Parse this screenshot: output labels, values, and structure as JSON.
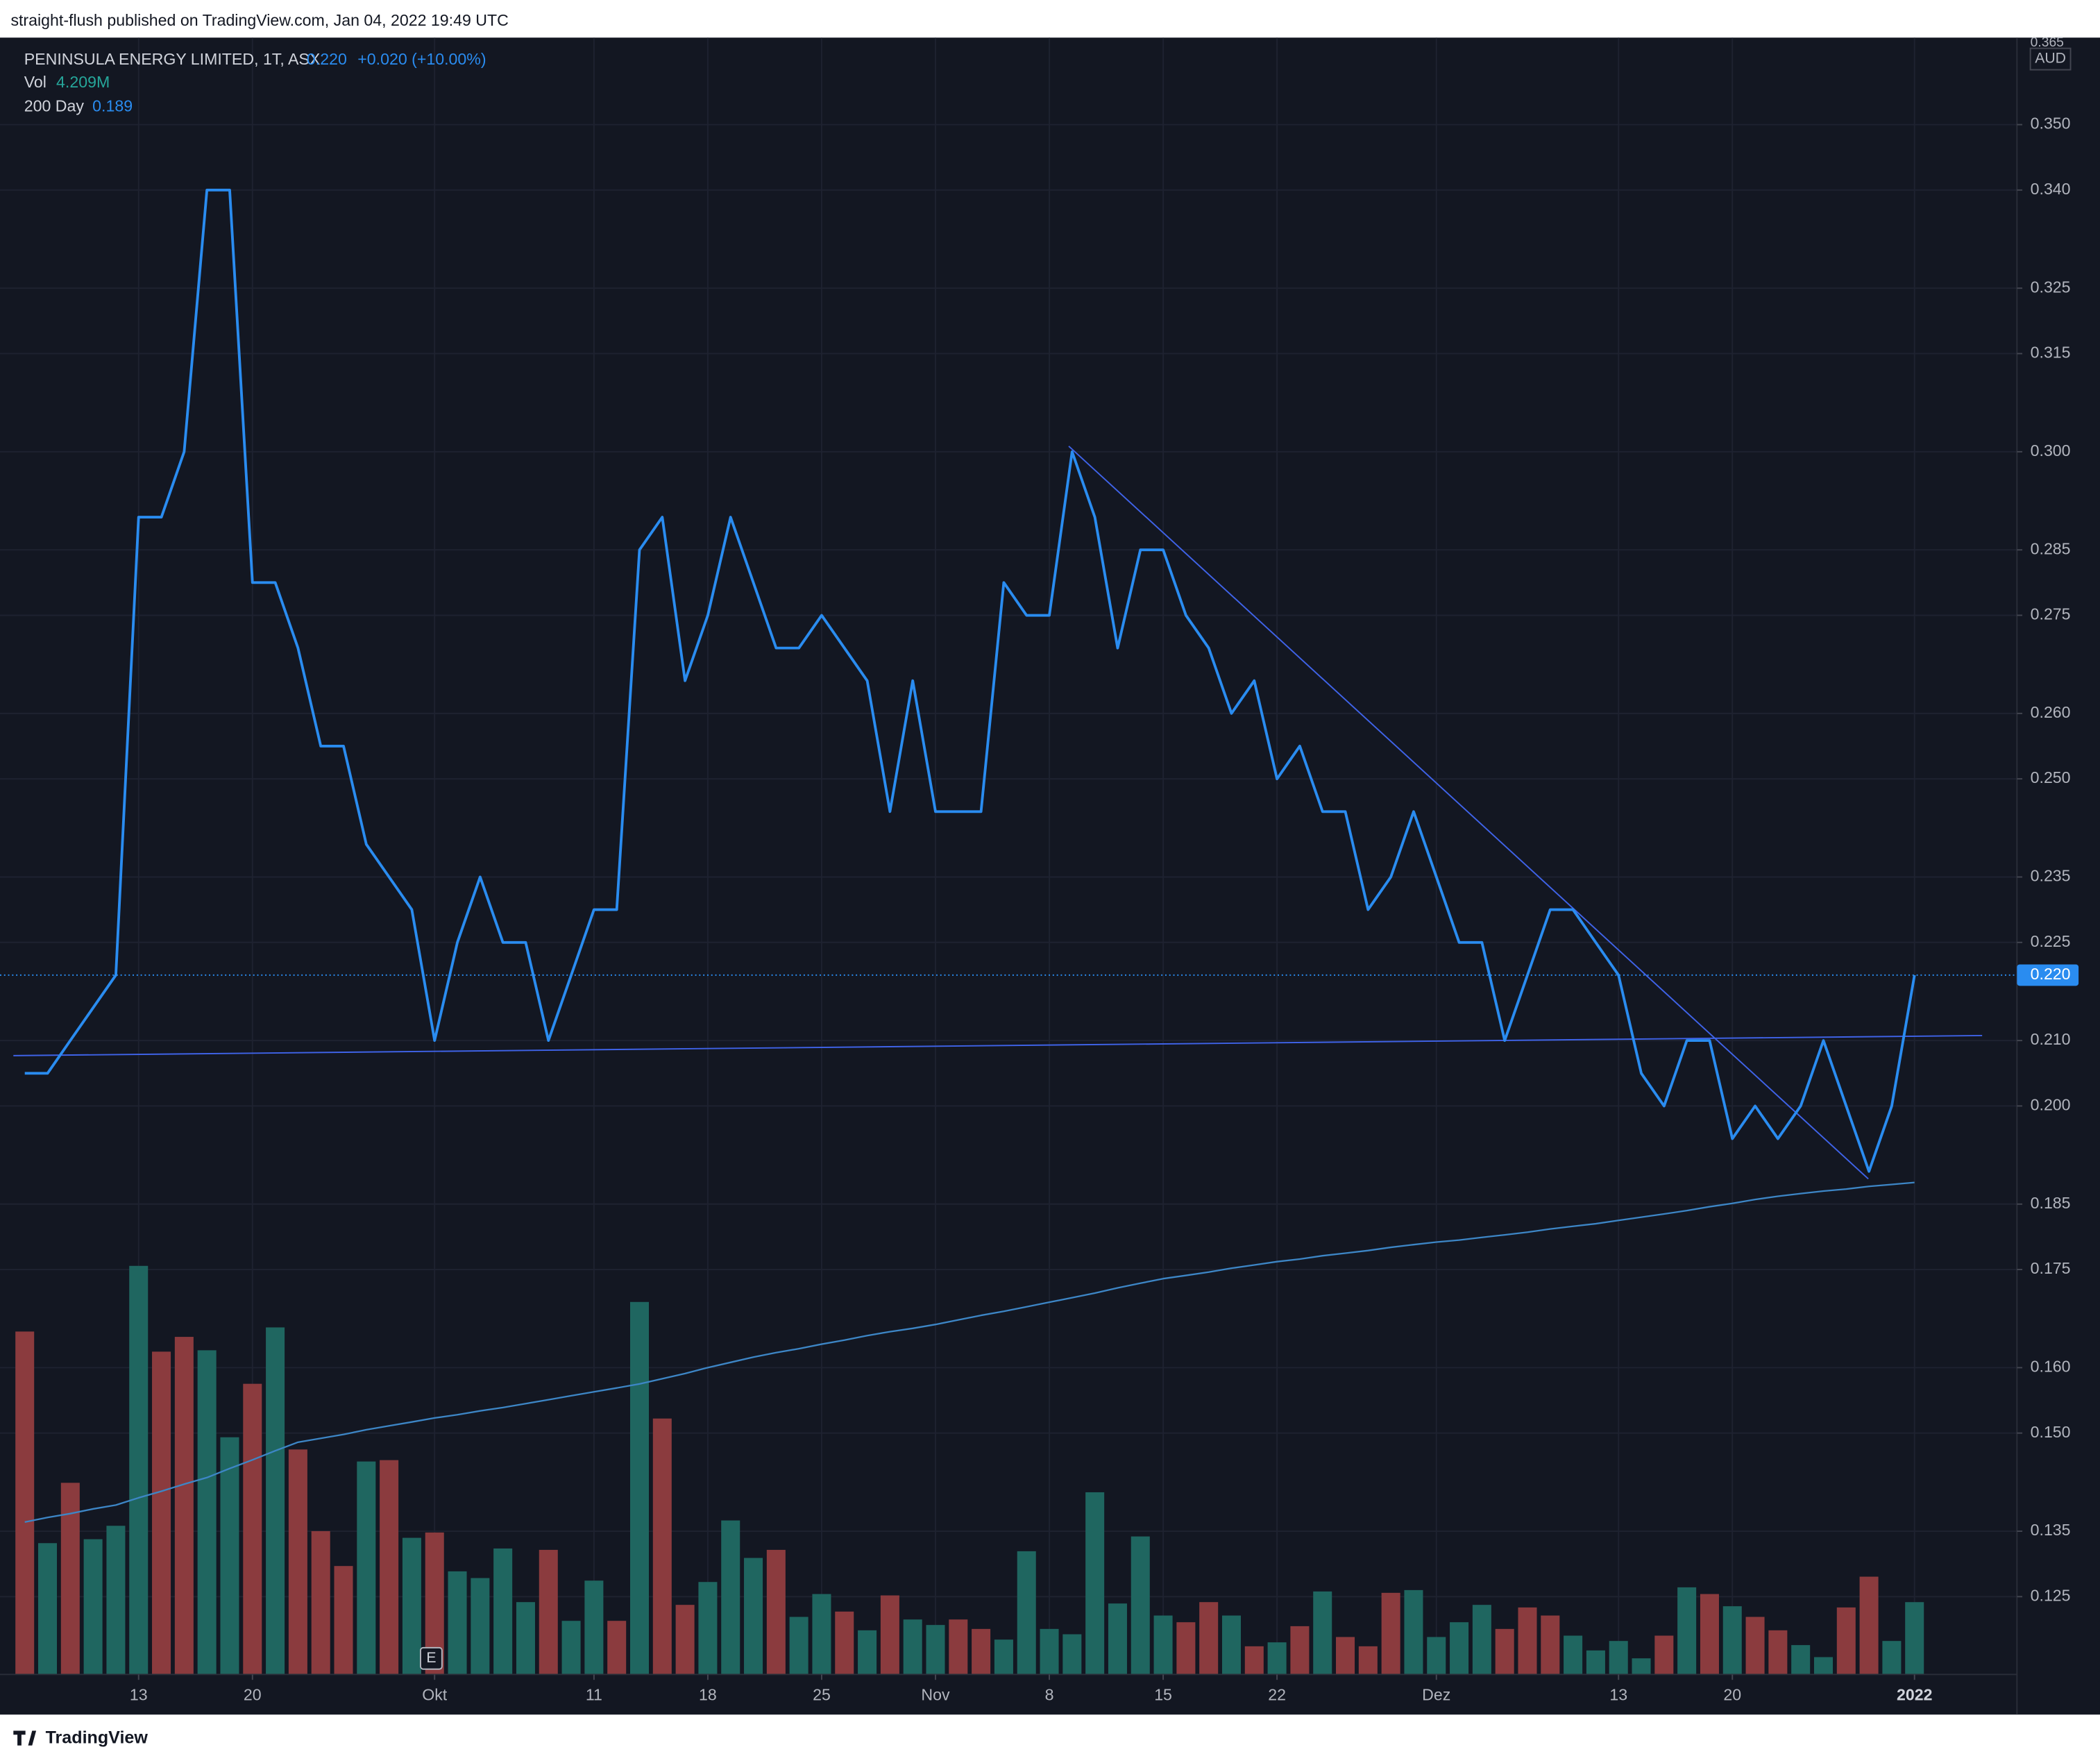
{
  "chart_data": {
    "type": "line",
    "publisher": "straight-flush published on TradingView.com, Jan 04, 2022 19:49 UTC",
    "currency": "AUD",
    "event_marker": "E",
    "brand": "TradingView",
    "grid": true,
    "categories": [
      null,
      null,
      null,
      null,
      null,
      "13",
      null,
      null,
      null,
      null,
      "20",
      null,
      null,
      null,
      null,
      null,
      null,
      null,
      "Okt",
      null,
      null,
      null,
      null,
      null,
      null,
      "11",
      null,
      null,
      null,
      null,
      "18",
      null,
      null,
      null,
      null,
      "25",
      null,
      null,
      null,
      null,
      "Nov",
      null,
      null,
      null,
      null,
      "8",
      null,
      null,
      null,
      null,
      "15",
      null,
      null,
      null,
      null,
      "22",
      null,
      null,
      null,
      null,
      null,
      null,
      "Dez",
      null,
      null,
      null,
      null,
      null,
      null,
      null,
      "13",
      null,
      null,
      null,
      null,
      "20",
      null,
      null,
      null,
      null,
      null,
      null,
      null,
      "2022"
    ],
    "ylim": [
      0.1131,
      0.3633
    ],
    "yticks": [
      0.365,
      {
        "value": 0.35,
        "label": "0.350"
      },
      {
        "value": 0.34,
        "label": "0.340"
      },
      0.325,
      0.315,
      {
        "value": 0.3,
        "label": "0.300"
      },
      0.285,
      0.275,
      {
        "value": 0.26,
        "label": "0.260"
      },
      {
        "value": 0.25,
        "label": "0.250"
      },
      0.235,
      0.225,
      {
        "value": 0.21,
        "label": "0.210"
      },
      {
        "value": 0.2,
        "label": "0.200"
      },
      0.185,
      0.175,
      {
        "value": 0.16,
        "label": "0.160"
      },
      {
        "value": 0.15,
        "label": "0.150"
      },
      0.135,
      0.125
    ],
    "series": [
      {
        "name": "PENINSULA ENERGY LIMITED, 1T, ASX",
        "color": "#2a8cf0",
        "last_label": "0.220",
        "change_label": "+0.020 (+10.00%)",
        "values": [
          0.205,
          0.205,
          0.21,
          0.215,
          0.22,
          0.29,
          0.29,
          0.3,
          0.34,
          0.34,
          0.28,
          0.28,
          0.27,
          0.255,
          0.255,
          0.24,
          0.235,
          0.23,
          0.21,
          0.225,
          0.235,
          0.225,
          0.225,
          0.21,
          0.22,
          0.23,
          0.23,
          0.285,
          0.29,
          0.265,
          0.275,
          0.29,
          0.28,
          0.27,
          0.27,
          0.275,
          0.27,
          0.265,
          0.245,
          0.265,
          0.245,
          0.245,
          0.245,
          0.28,
          0.275,
          0.275,
          0.3,
          0.29,
          0.27,
          0.285,
          0.285,
          0.275,
          0.27,
          0.26,
          0.265,
          0.25,
          0.255,
          0.245,
          0.245,
          0.23,
          0.235,
          0.245,
          0.235,
          0.225,
          0.225,
          0.21,
          0.22,
          0.23,
          0.23,
          0.225,
          0.22,
          0.205,
          0.2,
          0.21,
          0.21,
          0.195,
          0.2,
          0.195,
          0.2,
          0.21,
          0.2,
          0.19,
          0.2,
          0.22
        ]
      },
      {
        "name": "200 Day",
        "color": "#3d86c6",
        "last_label": "0.189",
        "values": [
          0.1364,
          0.1371,
          0.1377,
          0.1384,
          0.139,
          0.1401,
          0.1411,
          0.1422,
          0.1432,
          0.1446,
          0.1459,
          0.1473,
          0.1486,
          0.1492,
          0.1498,
          0.1505,
          0.1511,
          0.1517,
          0.1523,
          0.1528,
          0.1534,
          0.1539,
          0.1545,
          0.1551,
          0.1557,
          0.1563,
          0.1569,
          0.1575,
          0.1583,
          0.1591,
          0.16,
          0.1608,
          0.1616,
          0.1623,
          0.1629,
          0.1636,
          0.1642,
          0.1649,
          0.1655,
          0.166,
          0.1666,
          0.1673,
          0.168,
          0.1686,
          0.1693,
          0.17,
          0.1707,
          0.1714,
          0.1722,
          0.1729,
          0.1736,
          0.1741,
          0.1746,
          0.1752,
          0.1757,
          0.1762,
          0.1766,
          0.1771,
          0.1775,
          0.1779,
          0.1784,
          0.1788,
          0.1792,
          0.1795,
          0.1799,
          0.1803,
          0.1807,
          0.1812,
          0.1816,
          0.182,
          0.1825,
          0.183,
          0.1835,
          0.184,
          0.1846,
          0.1851,
          0.1857,
          0.1862,
          0.1866,
          0.187,
          0.1873,
          0.1877,
          0.188,
          0.1883
        ]
      }
    ],
    "volume": {
      "name": "Vol",
      "last_label": "4.209M",
      "ylim": [
        0,
        30
      ],
      "values": [
        19.95,
        7.64,
        11.15,
        7.87,
        8.65,
        23.77,
        18.78,
        19.64,
        18.86,
        13.8,
        16.91,
        20.19,
        13.09,
        8.34,
        6.31,
        12.39,
        12.47,
        7.95,
        8.26,
        6.0,
        5.61,
        7.33,
        4.21,
        7.25,
        3.12,
        5.46,
        3.12,
        21.67,
        14.89,
        4.05,
        5.38,
        8.96,
        6.78,
        7.25,
        3.35,
        4.68,
        3.66,
        2.57,
        4.6,
        3.2,
        2.88,
        3.2,
        2.65,
        2.03,
        7.17,
        2.65,
        2.34,
        10.6,
        4.13,
        8.03,
        3.43,
        3.04,
        4.21,
        3.43,
        1.64,
        1.87,
        2.81,
        4.83,
        2.18,
        1.64,
        4.75,
        4.91,
        2.18,
        3.04,
        4.05,
        2.65,
        3.9,
        3.43,
        2.26,
        1.4,
        1.95,
        0.94,
        2.26,
        5.07,
        4.68,
        3.97,
        3.35,
        2.57,
        1.71,
        1.01,
        3.9,
        5.69,
        1.95,
        4.209
      ],
      "colors": [
        "#8b3b3e",
        "#1f6660",
        "#8b3b3e",
        "#1f6660",
        "#1f6660",
        "#1f6660",
        "#8b3b3e",
        "#8b3b3e",
        "#1f6660",
        "#1f6660",
        "#8b3b3e",
        "#1f6660",
        "#8b3b3e",
        "#8b3b3e",
        "#8b3b3e",
        "#1f6660",
        "#8b3b3e",
        "#1f6660",
        "#8b3b3e",
        "#1f6660",
        "#1f6660",
        "#1f6660",
        "#1f6660",
        "#8b3b3e",
        "#1f6660",
        "#1f6660",
        "#8b3b3e",
        "#1f6660",
        "#8b3b3e",
        "#8b3b3e",
        "#1f6660",
        "#1f6660",
        "#1f6660",
        "#8b3b3e",
        "#1f6660",
        "#1f6660",
        "#8b3b3e",
        "#1f6660",
        "#8b3b3e",
        "#1f6660",
        "#1f6660",
        "#8b3b3e",
        "#8b3b3e",
        "#1f6660",
        "#1f6660",
        "#1f6660",
        "#1f6660",
        "#1f6660",
        "#1f6660",
        "#1f6660",
        "#1f6660",
        "#8b3b3e",
        "#8b3b3e",
        "#1f6660",
        "#8b3b3e",
        "#1f6660",
        "#8b3b3e",
        "#1f6660",
        "#8b3b3e",
        "#8b3b3e",
        "#8b3b3e",
        "#1f6660",
        "#1f6660",
        "#1f6660",
        "#1f6660",
        "#8b3b3e",
        "#8b3b3e",
        "#8b3b3e",
        "#1f6660",
        "#1f6660",
        "#1f6660",
        "#1f6660",
        "#8b3b3e",
        "#1f6660",
        "#8b3b3e",
        "#1f6660",
        "#8b3b3e",
        "#8b3b3e",
        "#1f6660",
        "#1f6660",
        "#8b3b3e",
        "#8b3b3e",
        "#1f6660",
        "#1f6660"
      ]
    }
  }
}
